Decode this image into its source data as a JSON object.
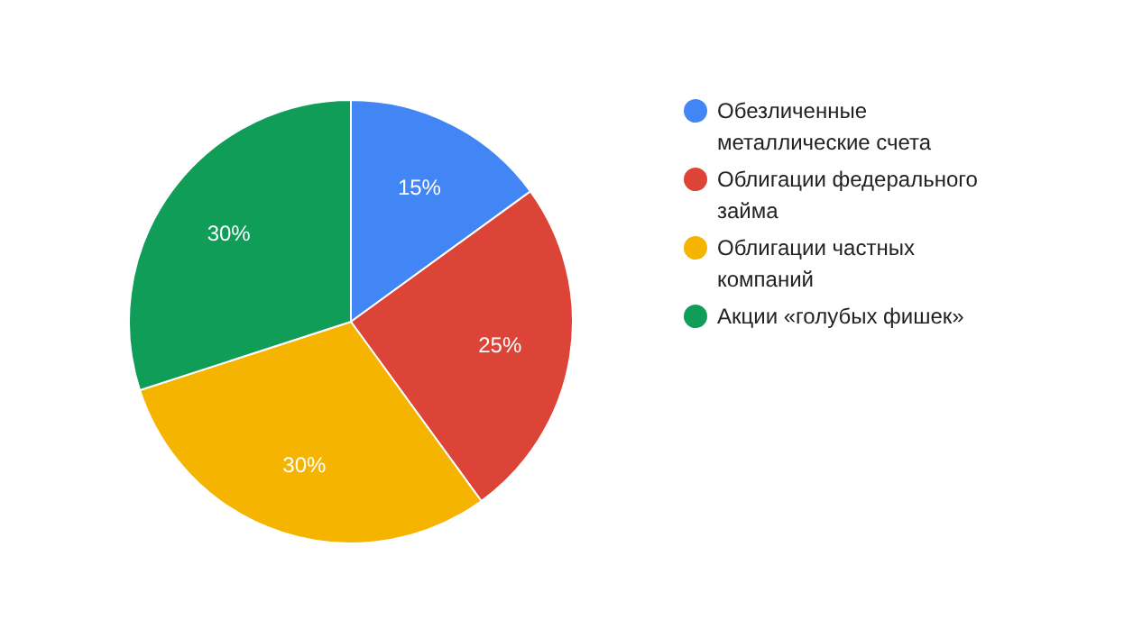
{
  "chart_data": {
    "type": "pie",
    "categories": [
      "Обезличенные металлические счета",
      "Облигации федерального займа",
      "Облигации частных компаний",
      "Акции «голубых фишек»"
    ],
    "values": [
      15,
      25,
      30,
      30
    ],
    "colors": [
      "#4285f4",
      "#db4437",
      "#f4b400",
      "#0f9d58"
    ],
    "value_labels": [
      "15%",
      "25%",
      "30%",
      "30%"
    ],
    "legend": "right"
  }
}
